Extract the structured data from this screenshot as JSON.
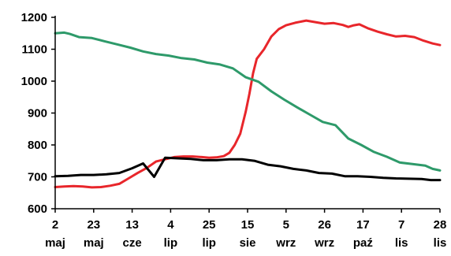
{
  "chart_data": {
    "type": "line",
    "ylim": [
      600,
      1200
    ],
    "yticks": [
      600,
      700,
      800,
      900,
      1000,
      1100,
      1200
    ],
    "x_tick_labels": [
      {
        "day": "2",
        "month": "maj"
      },
      {
        "day": "23",
        "month": "maj"
      },
      {
        "day": "13",
        "month": "cze"
      },
      {
        "day": "4",
        "month": "lip"
      },
      {
        "day": "25",
        "month": "lip"
      },
      {
        "day": "15",
        "month": "sie"
      },
      {
        "day": "5",
        "month": "wrz"
      },
      {
        "day": "26",
        "month": "wrz"
      },
      {
        "day": "17",
        "month": "paź"
      },
      {
        "day": "7",
        "month": "lis"
      },
      {
        "day": "28",
        "month": "lis"
      }
    ],
    "x_days_range": [
      0,
      210
    ],
    "grid": false,
    "legend": "none",
    "series": [
      {
        "color": "#e8262b",
        "points": [
          [
            0,
            668
          ],
          [
            5,
            670
          ],
          [
            10,
            671
          ],
          [
            15,
            670
          ],
          [
            20,
            667
          ],
          [
            25,
            668
          ],
          [
            30,
            672
          ],
          [
            35,
            678
          ],
          [
            40,
            695
          ],
          [
            45,
            712
          ],
          [
            50,
            728
          ],
          [
            55,
            748
          ],
          [
            60,
            755
          ],
          [
            65,
            762
          ],
          [
            70,
            764
          ],
          [
            75,
            764
          ],
          [
            80,
            762
          ],
          [
            84,
            760
          ],
          [
            88,
            761
          ],
          [
            92,
            765
          ],
          [
            95,
            775
          ],
          [
            98,
            800
          ],
          [
            101,
            835
          ],
          [
            104,
            905
          ],
          [
            106,
            960
          ],
          [
            108,
            1025
          ],
          [
            110,
            1070
          ],
          [
            114,
            1100
          ],
          [
            118,
            1140
          ],
          [
            122,
            1163
          ],
          [
            126,
            1175
          ],
          [
            131,
            1183
          ],
          [
            137,
            1190
          ],
          [
            142,
            1185
          ],
          [
            147,
            1180
          ],
          [
            152,
            1182
          ],
          [
            157,
            1176
          ],
          [
            160,
            1170
          ],
          [
            163,
            1175
          ],
          [
            166,
            1178
          ],
          [
            171,
            1165
          ],
          [
            176,
            1155
          ],
          [
            181,
            1147
          ],
          [
            186,
            1140
          ],
          [
            191,
            1142
          ],
          [
            196,
            1138
          ],
          [
            201,
            1127
          ],
          [
            206,
            1118
          ],
          [
            210,
            1113
          ]
        ]
      },
      {
        "color": "#2e9a6a",
        "points": [
          [
            0,
            1150
          ],
          [
            5,
            1152
          ],
          [
            8,
            1148
          ],
          [
            13,
            1138
          ],
          [
            20,
            1135
          ],
          [
            27,
            1125
          ],
          [
            34,
            1115
          ],
          [
            41,
            1105
          ],
          [
            48,
            1093
          ],
          [
            55,
            1085
          ],
          [
            62,
            1080
          ],
          [
            69,
            1072
          ],
          [
            76,
            1068
          ],
          [
            83,
            1058
          ],
          [
            90,
            1052
          ],
          [
            97,
            1040
          ],
          [
            104,
            1012
          ],
          [
            111,
            998
          ],
          [
            118,
            968
          ],
          [
            125,
            942
          ],
          [
            132,
            918
          ],
          [
            139,
            895
          ],
          [
            146,
            872
          ],
          [
            153,
            862
          ],
          [
            160,
            820
          ],
          [
            167,
            800
          ],
          [
            174,
            778
          ],
          [
            181,
            763
          ],
          [
            188,
            745
          ],
          [
            195,
            740
          ],
          [
            202,
            735
          ],
          [
            206,
            725
          ],
          [
            210,
            720
          ]
        ]
      },
      {
        "color": "#000000",
        "points": [
          [
            0,
            702
          ],
          [
            7,
            703
          ],
          [
            14,
            706
          ],
          [
            21,
            706
          ],
          [
            28,
            708
          ],
          [
            35,
            712
          ],
          [
            42,
            727
          ],
          [
            48,
            742
          ],
          [
            54,
            700
          ],
          [
            60,
            760
          ],
          [
            67,
            758
          ],
          [
            74,
            756
          ],
          [
            81,
            752
          ],
          [
            88,
            752
          ],
          [
            95,
            755
          ],
          [
            102,
            755
          ],
          [
            109,
            750
          ],
          [
            116,
            738
          ],
          [
            123,
            733
          ],
          [
            130,
            725
          ],
          [
            137,
            720
          ],
          [
            144,
            712
          ],
          [
            151,
            710
          ],
          [
            158,
            702
          ],
          [
            165,
            702
          ],
          [
            172,
            700
          ],
          [
            179,
            697
          ],
          [
            186,
            695
          ],
          [
            193,
            694
          ],
          [
            200,
            693
          ],
          [
            205,
            690
          ],
          [
            210,
            690
          ]
        ]
      }
    ]
  }
}
